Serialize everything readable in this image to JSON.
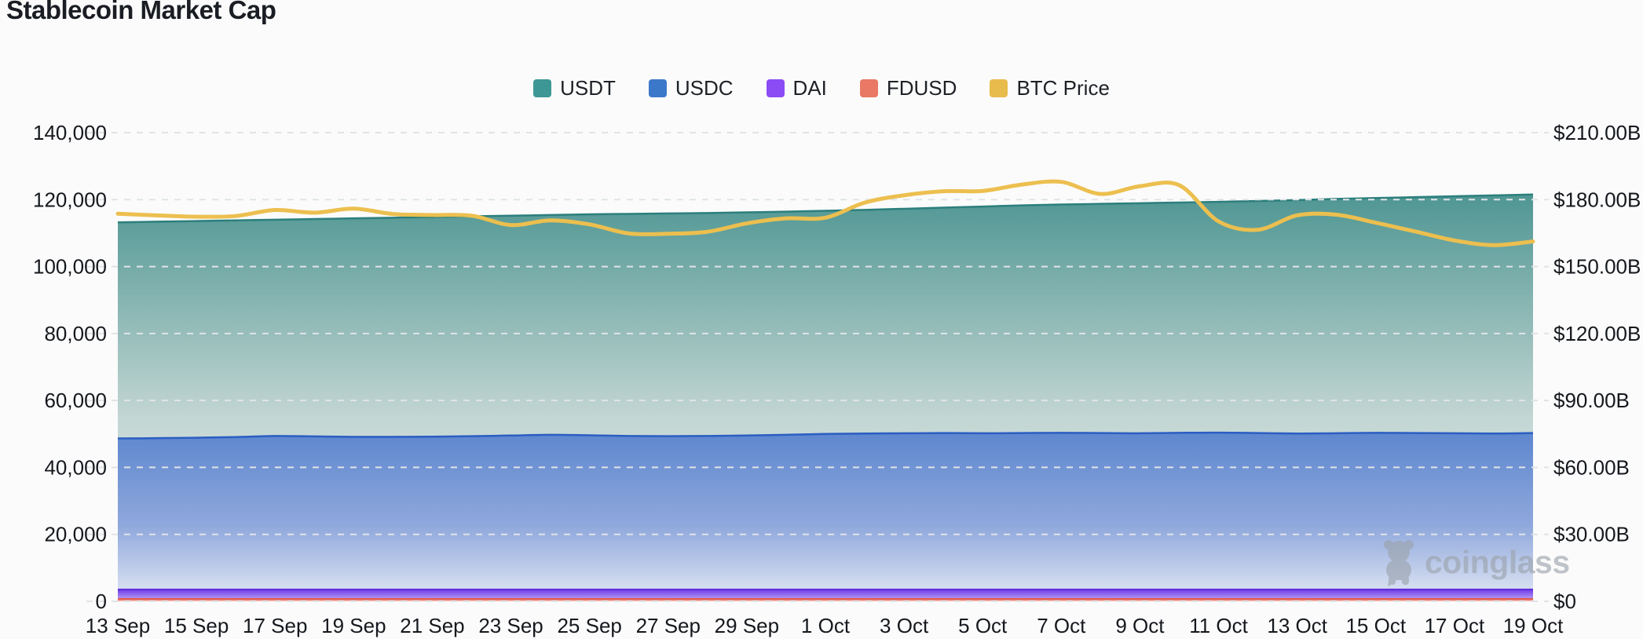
{
  "page": {
    "title": "Stablecoin Market Cap",
    "watermark": "coinglass",
    "background_color": "#fbfbfb"
  },
  "legend": [
    {
      "label": "USDT",
      "color": "#3d9795"
    },
    {
      "label": "USDC",
      "color": "#3c78c9"
    },
    {
      "label": "DAI",
      "color": "#8b4bf5"
    },
    {
      "label": "FDUSD",
      "color": "#e97864"
    },
    {
      "label": "BTC Price",
      "color": "#e8bb4d"
    }
  ],
  "chart_data": {
    "type": "area",
    "note": "Overlaid (non-stacked) gradient areas for stablecoin market caps on the right $B axis, plus BTC price line on the left axis. Grid: horizontal dashed lines. Legend top-center.",
    "x": [
      "13 Sep",
      "14 Sep",
      "15 Sep",
      "16 Sep",
      "17 Sep",
      "18 Sep",
      "19 Sep",
      "20 Sep",
      "21 Sep",
      "22 Sep",
      "23 Sep",
      "24 Sep",
      "25 Sep",
      "26 Sep",
      "27 Sep",
      "28 Sep",
      "29 Sep",
      "30 Sep",
      "1 Oct",
      "2 Oct",
      "3 Oct",
      "4 Oct",
      "5 Oct",
      "6 Oct",
      "7 Oct",
      "8 Oct",
      "9 Oct",
      "10 Oct",
      "11 Oct",
      "12 Oct",
      "13 Oct",
      "14 Oct",
      "15 Oct",
      "16 Oct",
      "17 Oct",
      "18 Oct",
      "19 Oct"
    ],
    "x_tick_every": 2,
    "left_axis": {
      "max": 140000,
      "tick_step": 20000,
      "tick_labels": [
        "0",
        "20,000",
        "40,000",
        "60,000",
        "80,000",
        "100,000",
        "120,000",
        "140,000"
      ]
    },
    "right_axis": {
      "max": 210,
      "tick_step": 30,
      "tick_labels": [
        "$0",
        "$30.00B",
        "$60.00B",
        "$90.00B",
        "$120.00B",
        "$150.00B",
        "$180.00B",
        "$210.00B"
      ]
    },
    "series": [
      {
        "name": "USDT",
        "kind": "area",
        "axis": "right",
        "unit": "$B",
        "line_color": "#2c7f7c",
        "fill_top": "#4f9693",
        "fill_mid": "#c3d6d3",
        "fill_bottom": "#eef2f0",
        "values": [
          169.8,
          170.1,
          170.4,
          170.7,
          171.0,
          171.3,
          171.6,
          171.9,
          172.2,
          172.5,
          172.8,
          173.1,
          173.4,
          173.6,
          173.8,
          174.0,
          174.3,
          174.6,
          175.0,
          175.4,
          175.9,
          176.4,
          176.9,
          177.4,
          177.8,
          178.1,
          178.4,
          178.7,
          179.0,
          179.4,
          179.8,
          180.3,
          180.7,
          181.1,
          181.5,
          181.9,
          182.3
        ]
      },
      {
        "name": "USDC",
        "kind": "area",
        "axis": "right",
        "unit": "$B",
        "line_color": "#2b5ec2",
        "fill_top": "#5e87cf",
        "fill_mid": "#8fa8dc",
        "fill_bottom": "#e4e9f5",
        "values": [
          73.0,
          73.1,
          73.3,
          73.6,
          74.1,
          73.9,
          73.7,
          73.7,
          73.8,
          74.0,
          74.3,
          74.6,
          74.4,
          74.1,
          74.0,
          74.1,
          74.3,
          74.6,
          75.0,
          75.2,
          75.3,
          75.4,
          75.3,
          75.4,
          75.5,
          75.4,
          75.3,
          75.5,
          75.6,
          75.4,
          75.2,
          75.3,
          75.5,
          75.4,
          75.3,
          75.2,
          75.4
        ]
      },
      {
        "name": "DAI",
        "kind": "area",
        "axis": "right",
        "unit": "$B",
        "line_color": "#5f2bd8",
        "fill_top": "#6d3be6",
        "fill_mid": "#9e7cf0",
        "fill_bottom": "#cabcf6",
        "values": [
          5.3,
          5.3,
          5.3,
          5.3,
          5.3,
          5.3,
          5.3,
          5.3,
          5.3,
          5.3,
          5.3,
          5.3,
          5.3,
          5.3,
          5.3,
          5.3,
          5.3,
          5.3,
          5.3,
          5.3,
          5.3,
          5.3,
          5.3,
          5.3,
          5.3,
          5.3,
          5.3,
          5.3,
          5.3,
          5.3,
          5.3,
          5.3,
          5.3,
          5.3,
          5.3,
          5.3,
          5.3
        ]
      },
      {
        "name": "FDUSD",
        "kind": "area",
        "axis": "right",
        "unit": "$B",
        "line_color": "#e05a50",
        "fill_top": "#e8766b",
        "fill_mid": "#ee9a90",
        "fill_bottom": "#f6c6c0",
        "values": [
          1.1,
          1.1,
          1.1,
          1.1,
          1.1,
          1.1,
          1.1,
          1.1,
          1.1,
          1.1,
          1.1,
          1.1,
          1.1,
          1.1,
          1.1,
          1.1,
          1.1,
          1.1,
          1.1,
          1.1,
          1.1,
          1.1,
          1.1,
          1.1,
          1.1,
          1.1,
          1.1,
          1.1,
          1.1,
          1.1,
          1.1,
          1.1,
          1.1,
          1.1,
          1.1,
          1.1,
          1.1
        ]
      },
      {
        "name": "BTC Price",
        "kind": "line",
        "axis": "left",
        "unit": "USD",
        "line_color": "#ecbf4f",
        "values": [
          115800,
          115300,
          114900,
          115100,
          116900,
          116100,
          117300,
          115700,
          115400,
          115200,
          112400,
          113800,
          112600,
          109900,
          109800,
          110400,
          112900,
          114400,
          114600,
          119100,
          121300,
          122500,
          122600,
          124500,
          125300,
          121700,
          124000,
          124300,
          113500,
          111000,
          115300,
          115500,
          113100,
          110500,
          107800,
          106400,
          107500
        ]
      }
    ]
  }
}
